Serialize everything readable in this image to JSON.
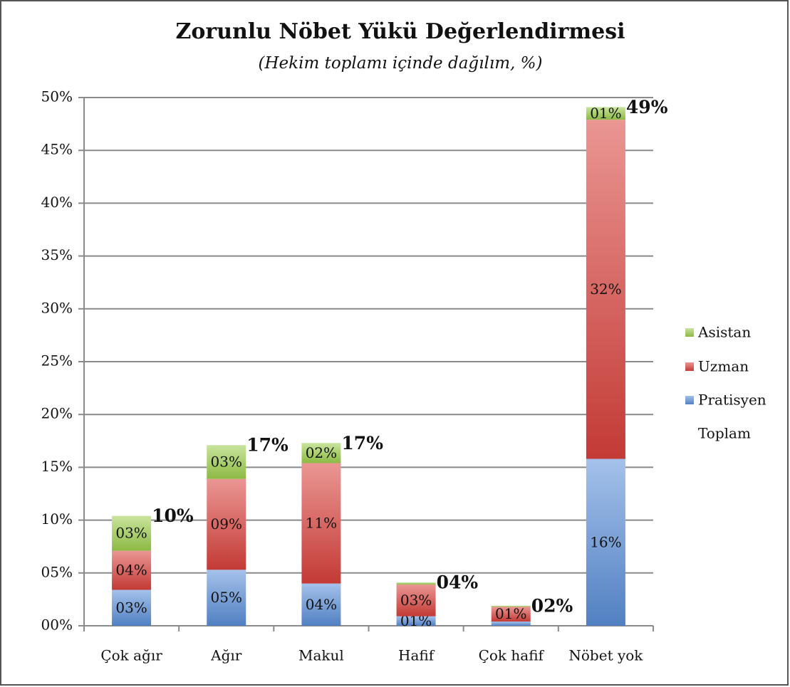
{
  "chart_data": {
    "type": "stacked_bar",
    "title": "Zorunlu Nöbet Yükü Değerlendirmesi",
    "subtitle": "(Hekim toplamı içinde dağılım, %)",
    "categories": [
      "Çok ağır",
      "Ağır",
      "Makul",
      "Hafif",
      "Çok hafif",
      "Nöbet yok"
    ],
    "series": [
      {
        "name": "Pratisyen",
        "color": "#5a8ed8",
        "values": [
          3.4,
          5.3,
          4.0,
          0.9,
          0.4,
          15.8
        ],
        "value_labels": [
          "03%",
          "05%",
          "04%",
          "01%",
          null,
          "16%"
        ]
      },
      {
        "name": "Uzman",
        "color": "#d9403b",
        "values": [
          3.7,
          8.6,
          11.4,
          3.0,
          1.4,
          32.1
        ],
        "value_labels": [
          "04%",
          "09%",
          "11%",
          "03%",
          "01%",
          "32%"
        ]
      },
      {
        "name": "Asistan",
        "color": "#9ccd4c",
        "values": [
          3.3,
          3.2,
          1.9,
          0.2,
          0.1,
          1.2
        ],
        "value_labels": [
          "03%",
          "03%",
          "02%",
          null,
          null,
          "01%"
        ]
      }
    ],
    "totals": {
      "name": "Toplam",
      "values": [
        10.4,
        17.1,
        17.3,
        4.1,
        1.9,
        49.1
      ],
      "value_labels": [
        "10%",
        "17%",
        "17%",
        "04%",
        "02%",
        "49%"
      ]
    },
    "ylim": [
      0,
      50
    ],
    "yticks": [
      {
        "value": 0,
        "label": "00%"
      },
      {
        "value": 5,
        "label": "05%"
      },
      {
        "value": 10,
        "label": "10%"
      },
      {
        "value": 15,
        "label": "15%"
      },
      {
        "value": 20,
        "label": "20%"
      },
      {
        "value": 25,
        "label": "25%"
      },
      {
        "value": 30,
        "label": "30%"
      },
      {
        "value": 35,
        "label": "35%"
      },
      {
        "value": 40,
        "label": "40%"
      },
      {
        "value": 45,
        "label": "45%"
      },
      {
        "value": 50,
        "label": "50%"
      }
    ],
    "grid": true,
    "legend": "right"
  }
}
